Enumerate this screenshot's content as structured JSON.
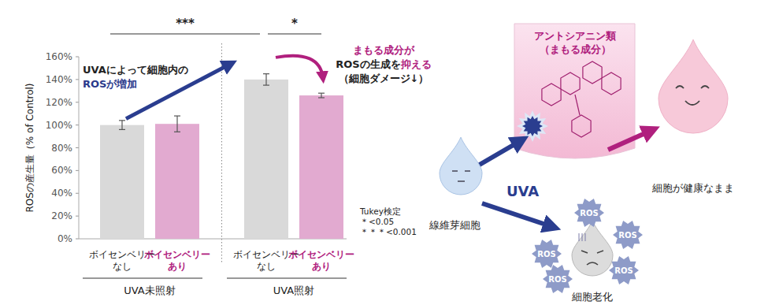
{
  "chart_data": {
    "type": "bar",
    "y_label": "ROSの産生量（% of Control)",
    "categories": [
      "ボイセンベリー\nなし",
      "ボイセンベリー\nあり",
      "ボイセンベリー\nなし",
      "ボイセンベリー\nあり"
    ],
    "values": [
      100,
      101,
      140,
      126
    ],
    "errors": [
      4,
      7,
      5,
      2
    ],
    "colors": [
      "#d9d9d9",
      "#e2aad0",
      "#d9d9d9",
      "#e2aad0"
    ],
    "ylim": [
      0,
      160
    ],
    "yticks": [
      {
        "value": 0,
        "label": "0%"
      },
      {
        "value": 20,
        "label": "20%"
      },
      {
        "value": 40,
        "label": "40%"
      },
      {
        "value": 60,
        "label": "60%"
      },
      {
        "value": 80,
        "label": "80%"
      },
      {
        "value": 100,
        "label": "100%"
      },
      {
        "value": 120,
        "label": "120%"
      },
      {
        "value": 140,
        "label": "140%"
      },
      {
        "value": 160,
        "label": "160%"
      }
    ],
    "grid": false,
    "groups": [
      {
        "label": "UVA未照射",
        "categories": [
          0,
          1
        ]
      },
      {
        "label": "UVA照射",
        "categories": [
          2,
          3
        ]
      }
    ],
    "significance": [
      {
        "from": 0,
        "to": 2,
        "label": "***"
      },
      {
        "from": 2,
        "to": 3,
        "label": "*"
      }
    ],
    "test_note": [
      "Tukey検定",
      "＊<0.05",
      "＊＊＊<0.001"
    ],
    "annotations": [
      {
        "lines": [
          [
            {
              "text": "UVAによって細胞内の",
              "color": "#222222"
            }
          ],
          [
            {
              "text": "ROSが増加",
              "color": "#2b3a8c"
            }
          ]
        ]
      },
      {
        "lines": [
          [
            {
              "text": "まもる成分が",
              "color": "#b0207e"
            }
          ],
          [
            {
              "text": "ROSの生成を",
              "color": "#222222"
            },
            {
              "text": "抑える",
              "color": "#b0207e"
            }
          ],
          [
            {
              "text": "（細胞ダメージ↓）",
              "color": "#222222"
            }
          ]
        ]
      }
    ]
  },
  "diagram": {
    "shield_title": [
      "アントシアニン類",
      "（まもる成分）"
    ],
    "uva_label": "UVA",
    "cell_label": "線維芽細胞",
    "healthy_label": "細胞が健康なまま",
    "aging_label": "細胞老化",
    "ros_labels": [
      "ROS",
      "ROS",
      "ROS",
      "ROS",
      "ROS"
    ]
  }
}
